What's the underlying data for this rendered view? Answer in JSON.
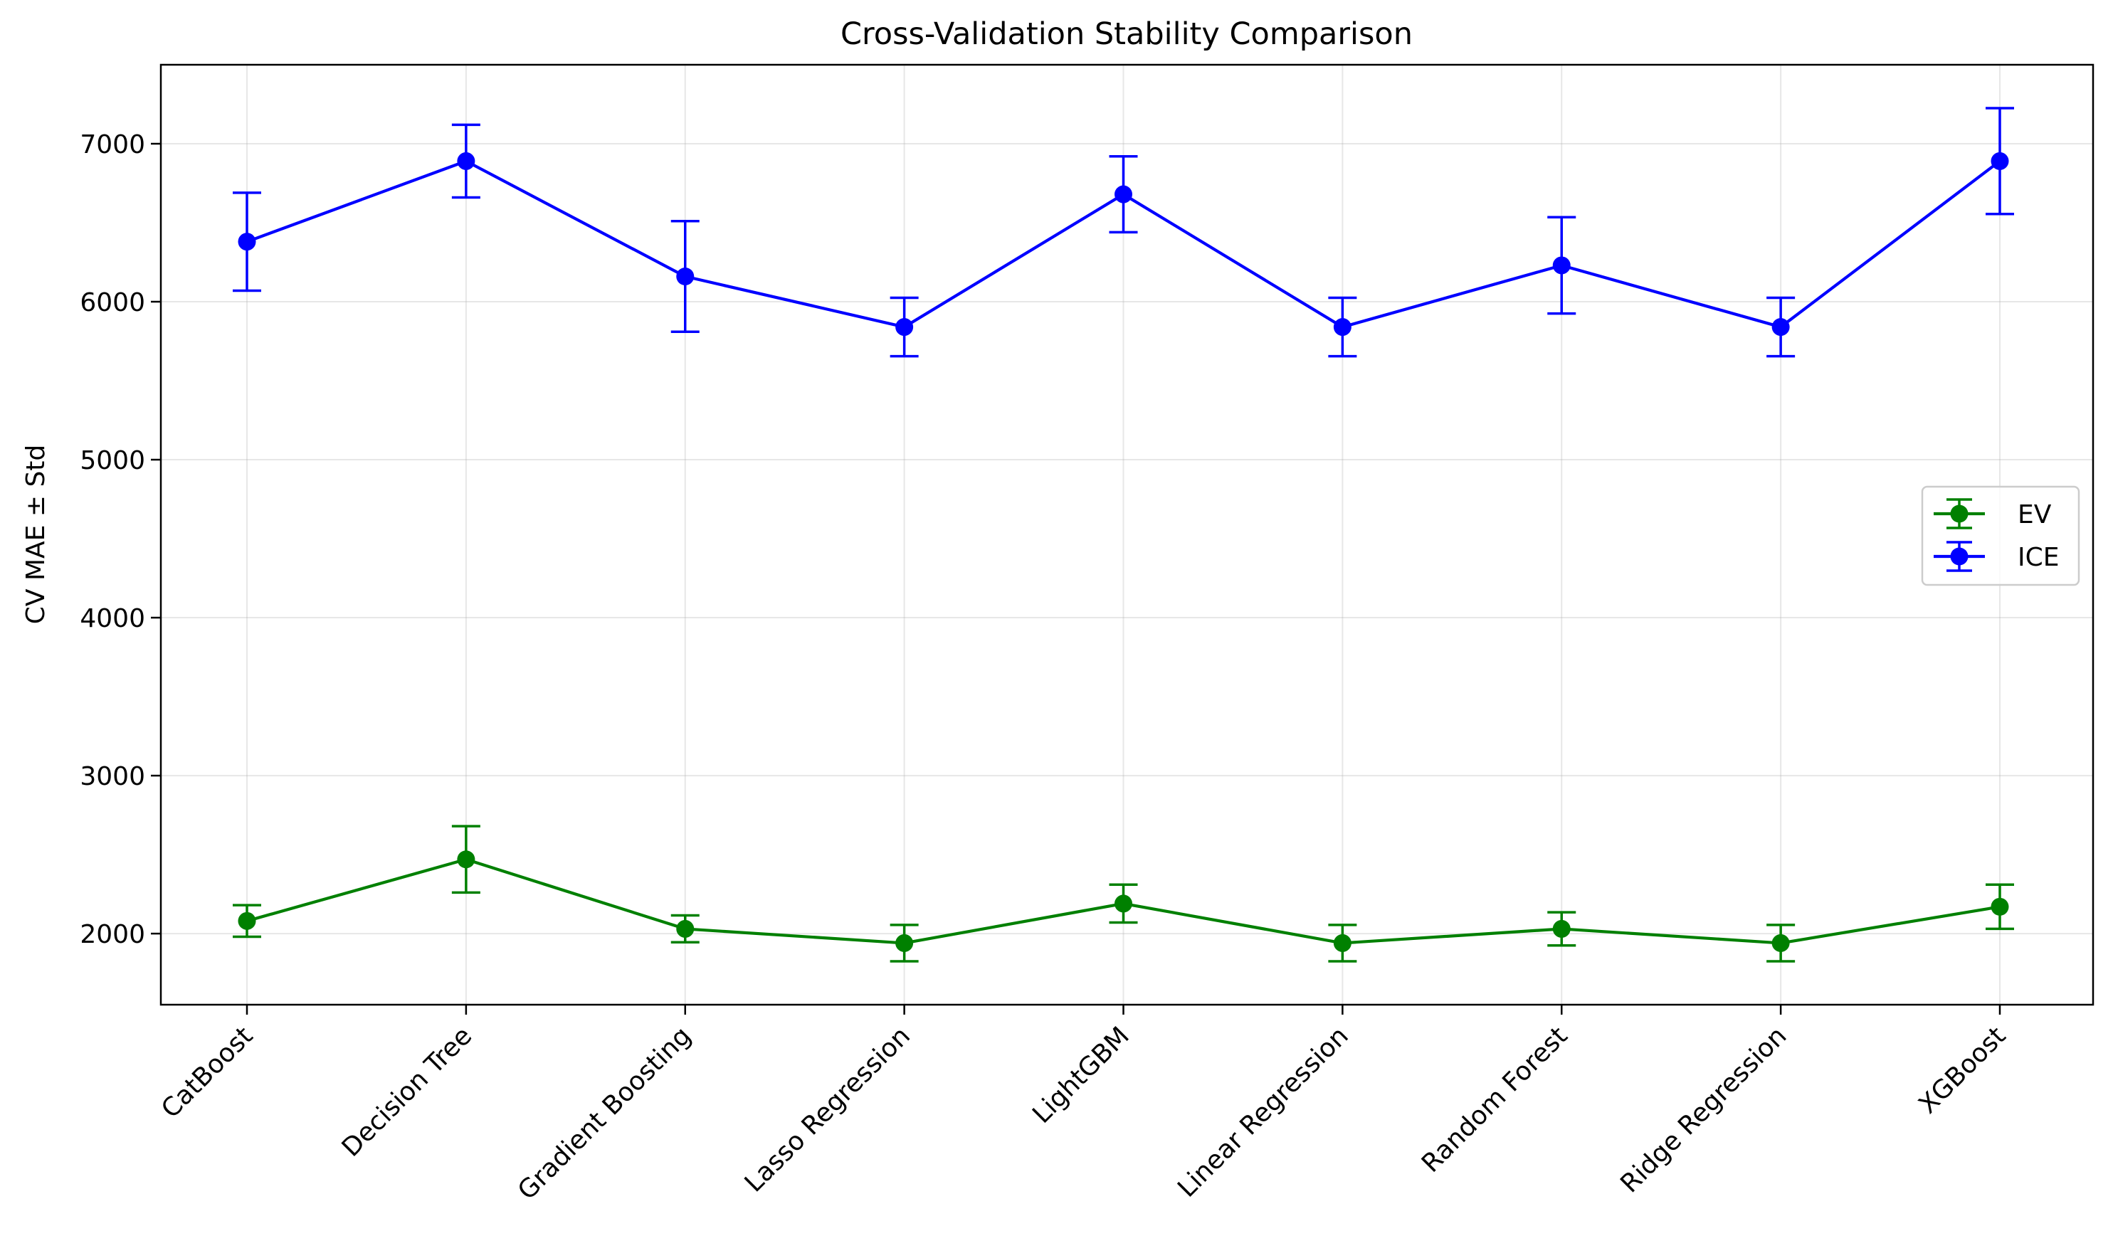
{
  "chart_data": {
    "type": "line",
    "title": "Cross-Validation Stability Comparison",
    "xlabel": "",
    "ylabel": "CV MAE ± Std",
    "categories": [
      "CatBoost",
      "Decision Tree",
      "Gradient Boosting",
      "Lasso Regression",
      "LightGBM",
      "Linear Regression",
      "Random Forest",
      "Ridge Regression",
      "XGBoost"
    ],
    "ylim": [
      1550,
      7500
    ],
    "yticks": [
      2000,
      3000,
      4000,
      5000,
      6000,
      7000
    ],
    "ytick_labels": [
      "2000",
      "3000",
      "4000",
      "5000",
      "6000",
      "7000"
    ],
    "grid": true,
    "legend_position": "center-right",
    "error_bars": true,
    "series": [
      {
        "name": "EV",
        "color": "#008000",
        "marker": "circle",
        "values": [
          2080,
          2470,
          2030,
          1940,
          2190,
          1940,
          2030,
          1940,
          2170
        ],
        "errors": [
          100,
          210,
          85,
          115,
          120,
          115,
          105,
          115,
          140
        ]
      },
      {
        "name": "ICE",
        "color": "#0000ff",
        "marker": "circle",
        "values": [
          6380,
          6890,
          6160,
          5840,
          6680,
          5840,
          6230,
          5840,
          6890
        ],
        "errors": [
          310,
          230,
          350,
          185,
          240,
          185,
          305,
          185,
          335
        ]
      }
    ]
  }
}
